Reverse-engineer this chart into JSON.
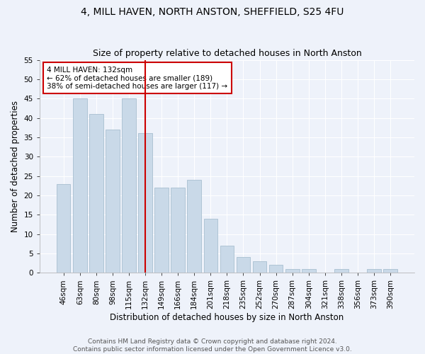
{
  "title": "4, MILL HAVEN, NORTH ANSTON, SHEFFIELD, S25 4FU",
  "subtitle": "Size of property relative to detached houses in North Anston",
  "xlabel": "Distribution of detached houses by size in North Anston",
  "ylabel": "Number of detached properties",
  "categories": [
    "46sqm",
    "63sqm",
    "80sqm",
    "98sqm",
    "115sqm",
    "132sqm",
    "149sqm",
    "166sqm",
    "184sqm",
    "201sqm",
    "218sqm",
    "235sqm",
    "252sqm",
    "270sqm",
    "287sqm",
    "304sqm",
    "321sqm",
    "338sqm",
    "356sqm",
    "373sqm",
    "390sqm"
  ],
  "values": [
    23,
    45,
    41,
    37,
    45,
    36,
    22,
    22,
    24,
    14,
    7,
    4,
    3,
    2,
    1,
    1,
    0,
    1,
    0,
    1,
    1
  ],
  "bar_color": "#c9d9e8",
  "bar_edge_color": "#a8bfd0",
  "highlight_index": 5,
  "highlight_color": "#cc0000",
  "annotation_text": "4 MILL HAVEN: 132sqm\n← 62% of detached houses are smaller (189)\n38% of semi-detached houses are larger (117) →",
  "annotation_box_color": "#ffffff",
  "annotation_box_edge": "#cc0000",
  "ylim": [
    0,
    55
  ],
  "yticks": [
    0,
    5,
    10,
    15,
    20,
    25,
    30,
    35,
    40,
    45,
    50,
    55
  ],
  "footer": "Contains HM Land Registry data © Crown copyright and database right 2024.\nContains public sector information licensed under the Open Government Licence v3.0.",
  "background_color": "#eef2fa",
  "grid_color": "#ffffff",
  "title_fontsize": 10,
  "subtitle_fontsize": 9,
  "axis_label_fontsize": 8.5,
  "tick_fontsize": 7.5,
  "footer_fontsize": 6.5,
  "annotation_fontsize": 7.5
}
